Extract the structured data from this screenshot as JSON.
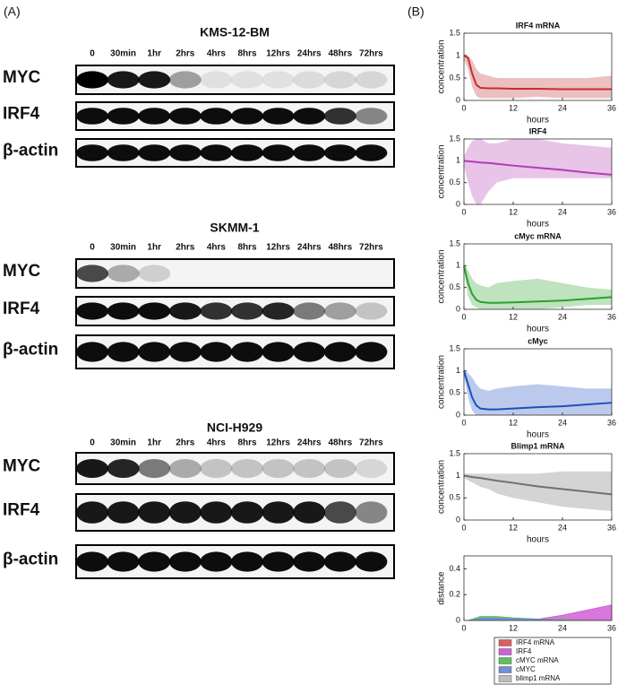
{
  "panel_labels": [
    "(A)",
    "(B)"
  ],
  "blots": [
    {
      "title": "KMS-12-BM",
      "timepoints": [
        "0",
        "30min",
        "1hr",
        "2hrs",
        "4hrs",
        "8hrs",
        "12hrs",
        "24hrs",
        "48hrs",
        "72hrs"
      ],
      "rows": [
        "MYC",
        "IRF4",
        "β-actin"
      ]
    },
    {
      "title": "SKMM-1",
      "timepoints": [
        "0",
        "30min",
        "1hr",
        "2hrs",
        "4hrs",
        "8hrs",
        "12hrs",
        "24hrs",
        "48hrs",
        "72hrs"
      ],
      "rows": [
        "MYC",
        "IRF4",
        "β-actin"
      ]
    },
    {
      "title": "NCI-H929",
      "timepoints": [
        "0",
        "30min",
        "1hr",
        "2hrs",
        "4hrs",
        "8hrs",
        "12hrs",
        "24hrs",
        "48hrs",
        "72hrs"
      ],
      "rows": [
        "MYC",
        "IRF4",
        "β-actin"
      ]
    }
  ],
  "chart_data": [
    {
      "type": "line",
      "title": "IRF4 mRNA",
      "xlabel": "hours",
      "ylabel": "concentration",
      "x": [
        0,
        1,
        2,
        3,
        4,
        6,
        8,
        12,
        18,
        24,
        30,
        36
      ],
      "xlim": [
        0,
        36
      ],
      "xticks": [
        0,
        12,
        24,
        36
      ],
      "ylim": [
        0,
        1.5
      ],
      "yticks": [
        0,
        0.5,
        1,
        1.5
      ],
      "series": [
        {
          "color": "#c0302f",
          "values": [
            1,
            0.95,
            0.6,
            0.35,
            0.28,
            0.27,
            0.27,
            0.26,
            0.26,
            0.25,
            0.25,
            0.25
          ],
          "lower": [
            0.9,
            0.7,
            0.3,
            0.1,
            0.05,
            0.05,
            0.05,
            0.05,
            0.08,
            0.05,
            0.05,
            0.05
          ],
          "upper": [
            1.05,
            1,
            0.9,
            0.7,
            0.6,
            0.55,
            0.5,
            0.5,
            0.5,
            0.5,
            0.5,
            0.55
          ]
        }
      ]
    },
    {
      "type": "line",
      "title": "IRF4",
      "xlabel": "hours",
      "ylabel": "concentration",
      "x": [
        0,
        1,
        2,
        3,
        4,
        6,
        8,
        12,
        18,
        24,
        30,
        36
      ],
      "xlim": [
        0,
        36
      ],
      "xticks": [
        0,
        12,
        24,
        36
      ],
      "ylim": [
        0,
        1.5
      ],
      "yticks": [
        0,
        0.5,
        1,
        1.5
      ],
      "series": [
        {
          "color": "#b23cb5",
          "values": [
            1,
            0.99,
            0.98,
            0.97,
            0.96,
            0.95,
            0.93,
            0.89,
            0.84,
            0.79,
            0.73,
            0.68
          ],
          "lower": [
            0.9,
            0.5,
            0.2,
            0,
            0,
            0.3,
            0.5,
            0.6,
            0.6,
            0.6,
            0.6,
            0.6
          ],
          "upper": [
            1.1,
            1.3,
            1.45,
            1.5,
            1.5,
            1.4,
            1.4,
            1.5,
            1.5,
            1.4,
            1.35,
            1.3
          ]
        }
      ]
    },
    {
      "type": "line",
      "title": "cMyc mRNA",
      "xlabel": "hours",
      "ylabel": "concentration",
      "x": [
        0,
        1,
        2,
        3,
        4,
        6,
        8,
        12,
        18,
        24,
        30,
        36
      ],
      "xlim": [
        0,
        36
      ],
      "xticks": [
        0,
        12,
        24,
        36
      ],
      "ylim": [
        0,
        1.5
      ],
      "yticks": [
        0,
        0.5,
        1,
        1.5
      ],
      "series": [
        {
          "color": "#2ca02c",
          "values": [
            1,
            0.6,
            0.35,
            0.22,
            0.17,
            0.15,
            0.15,
            0.16,
            0.18,
            0.2,
            0.24,
            0.28
          ],
          "lower": [
            0.9,
            0.3,
            0.1,
            0.05,
            0,
            0,
            0,
            0,
            0,
            0.05,
            0.1,
            0.1
          ],
          "upper": [
            1.05,
            0.9,
            0.7,
            0.6,
            0.55,
            0.5,
            0.6,
            0.65,
            0.7,
            0.6,
            0.5,
            0.45
          ]
        }
      ]
    },
    {
      "type": "line",
      "title": "cMyc",
      "xlabel": "hours",
      "ylabel": "concentration",
      "x": [
        0,
        1,
        2,
        3,
        4,
        6,
        8,
        12,
        18,
        24,
        30,
        36
      ],
      "xlim": [
        0,
        36
      ],
      "xticks": [
        0,
        12,
        24,
        36
      ],
      "ylim": [
        0,
        1.5
      ],
      "yticks": [
        0,
        0.5,
        1,
        1.5
      ],
      "series": [
        {
          "color": "#1f4fbf",
          "values": [
            1,
            0.7,
            0.4,
            0.22,
            0.15,
            0.13,
            0.13,
            0.15,
            0.18,
            0.2,
            0.24,
            0.28
          ],
          "lower": [
            0.9,
            0.4,
            0.1,
            0,
            0,
            0,
            0,
            0,
            0,
            0,
            0,
            0
          ],
          "upper": [
            1.05,
            0.95,
            0.85,
            0.7,
            0.6,
            0.55,
            0.6,
            0.65,
            0.7,
            0.65,
            0.6,
            0.6
          ]
        }
      ]
    },
    {
      "type": "line",
      "title": "Blimp1 mRNA",
      "xlabel": "hours",
      "ylabel": "concentration",
      "x": [
        0,
        1,
        2,
        3,
        4,
        6,
        8,
        12,
        18,
        24,
        30,
        36
      ],
      "xlim": [
        0,
        36
      ],
      "xticks": [
        0,
        12,
        24,
        36
      ],
      "ylim": [
        0,
        1.5
      ],
      "yticks": [
        0,
        0.5,
        1,
        1.5
      ],
      "series": [
        {
          "color": "#707070",
          "values": [
            1,
            0.99,
            0.97,
            0.96,
            0.95,
            0.92,
            0.89,
            0.84,
            0.76,
            0.7,
            0.64,
            0.58
          ],
          "lower": [
            0.95,
            0.9,
            0.85,
            0.8,
            0.75,
            0.7,
            0.6,
            0.5,
            0.4,
            0.3,
            0.25,
            0.2
          ],
          "upper": [
            1.05,
            1.05,
            1.05,
            1.05,
            1.05,
            1.05,
            1.05,
            1.05,
            1.05,
            1.1,
            1.1,
            1.1
          ]
        }
      ]
    },
    {
      "type": "area",
      "ylabel": "distance",
      "x": [
        0,
        1,
        2,
        3,
        4,
        6,
        8,
        12,
        18,
        24,
        30,
        36
      ],
      "xlim": [
        0,
        36
      ],
      "xticks": [
        0,
        12,
        24,
        36
      ],
      "ylim": [
        0,
        0.5
      ],
      "yticks": [
        0,
        0.2,
        0.4
      ],
      "legend": "below",
      "series": [
        {
          "name": "IRF4 mRNA",
          "color": "#d9605e",
          "values": [
            0,
            0,
            0.005,
            0.005,
            0.005,
            0.005,
            0.005,
            0.005,
            0.005,
            0.005,
            0.005,
            0.005
          ]
        },
        {
          "name": "IRF4",
          "color": "#d260d6",
          "values": [
            0,
            0,
            0,
            0,
            0,
            0,
            0,
            0,
            0.01,
            0.04,
            0.08,
            0.12
          ]
        },
        {
          "name": "cMYC mRNA",
          "color": "#5cc25c",
          "values": [
            0,
            0,
            0.01,
            0.02,
            0.03,
            0.03,
            0.03,
            0.02,
            0.01,
            0.005,
            0,
            0
          ]
        },
        {
          "name": "cMYC",
          "color": "#6f8fd6",
          "values": [
            0,
            0,
            0.005,
            0.01,
            0.02,
            0.02,
            0.02,
            0.015,
            0.01,
            0,
            0,
            0
          ]
        },
        {
          "name": "blimp1 mRNA",
          "color": "#bdbdbd",
          "values": [
            0,
            0,
            0,
            0,
            0,
            0,
            0,
            0,
            0,
            0,
            0,
            0
          ]
        }
      ]
    }
  ]
}
